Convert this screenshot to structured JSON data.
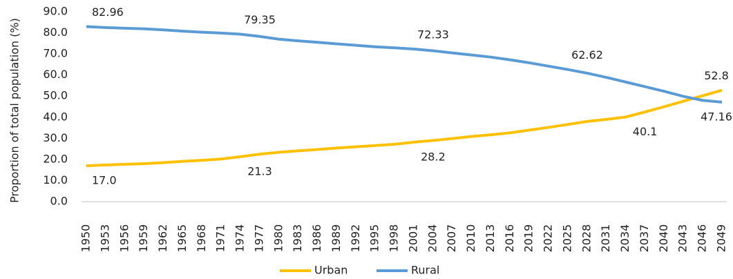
{
  "chart_data": {
    "type": "line",
    "y_label": "Proportion of total population (%)",
    "categories": [
      "1950",
      "1953",
      "1956",
      "1959",
      "1962",
      "1965",
      "1968",
      "1971",
      "1974",
      "1977",
      "1980",
      "1983",
      "1986",
      "1989",
      "1992",
      "1995",
      "1998",
      "2001",
      "2004",
      "2007",
      "2010",
      "2013",
      "2016",
      "2019",
      "2022",
      "2025",
      "2028",
      "2031",
      "2034",
      "2037",
      "2040",
      "2043",
      "2046",
      "2049"
    ],
    "series": [
      {
        "name": "Urban",
        "color": "#ffc000",
        "values": [
          17.0,
          17.4,
          17.7,
          18.0,
          18.5,
          19.1,
          19.6,
          20.2,
          21.3,
          22.5,
          23.4,
          24.1,
          24.7,
          25.4,
          26.0,
          26.6,
          27.2,
          28.2,
          29.0,
          29.9,
          30.9,
          31.7,
          32.6,
          33.9,
          35.2,
          36.6,
          38.0,
          39.0,
          40.1,
          42.5,
          45.0,
          47.6,
          50.2,
          52.8
        ],
        "value_labels": [
          "17.0",
          null,
          null,
          null,
          null,
          null,
          null,
          null,
          "21.3",
          null,
          null,
          null,
          null,
          null,
          null,
          null,
          null,
          "28.2",
          null,
          null,
          null,
          null,
          null,
          null,
          null,
          null,
          null,
          null,
          "40.1",
          null,
          null,
          null,
          null,
          "52.8"
        ]
      },
      {
        "name": "Rural",
        "color": "#5b9bd5",
        "values": [
          82.96,
          82.5,
          82.2,
          81.9,
          81.4,
          80.8,
          80.3,
          79.9,
          79.35,
          78.3,
          77.0,
          76.2,
          75.5,
          74.8,
          74.1,
          73.4,
          72.9,
          72.33,
          71.5,
          70.5,
          69.5,
          68.5,
          67.2,
          65.8,
          64.2,
          62.62,
          60.9,
          58.9,
          56.7,
          54.5,
          52.3,
          49.9,
          48.0,
          47.16
        ],
        "value_labels": [
          "82.96",
          null,
          null,
          null,
          null,
          null,
          null,
          null,
          "79.35",
          null,
          null,
          null,
          null,
          null,
          null,
          null,
          null,
          "72.33",
          null,
          null,
          null,
          null,
          null,
          null,
          null,
          "62.62",
          null,
          null,
          null,
          null,
          null,
          null,
          null,
          "47.16"
        ]
      }
    ],
    "ylim": [
      0,
      90
    ],
    "yticks": [
      {
        "value": 0,
        "label": "0.0"
      },
      {
        "value": 10,
        "label": "10.0"
      },
      {
        "value": 20,
        "label": "20.0"
      },
      {
        "value": 30,
        "label": "30.0"
      },
      {
        "value": 40,
        "label": "40.0"
      },
      {
        "value": 50,
        "label": "50.0"
      },
      {
        "value": 60,
        "label": "60.0"
      },
      {
        "value": 70,
        "label": "70.0"
      },
      {
        "value": 80,
        "label": "80.0"
      },
      {
        "value": 90,
        "label": "90.0"
      }
    ],
    "legend": "bottom"
  }
}
